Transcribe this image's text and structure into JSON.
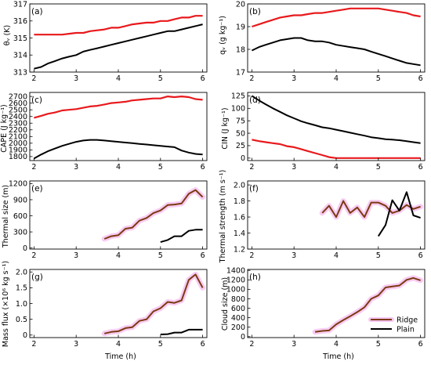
{
  "figure": {
    "xlabel": "Time (h)",
    "legend": {
      "placement": "bottom-right of panel h",
      "entries": [
        {
          "name": "Ridge",
          "color": "#7B3A10",
          "halo": "#F7C6F2"
        },
        {
          "name": "Plain",
          "color": "#000000"
        }
      ]
    }
  },
  "chart_data": [
    {
      "type": "line",
      "panel": "(a)",
      "ylabel": "θᵥ (K)",
      "xlim": [
        1.9,
        6.1
      ],
      "ylim": [
        313,
        317
      ],
      "xticks": [
        2,
        3,
        4,
        5,
        6
      ],
      "xtick_labels": [
        "2",
        "3",
        "4",
        "5",
        "6"
      ],
      "yticks": [
        313,
        314,
        315,
        316,
        317
      ],
      "ytick_labels": [
        "313",
        "314",
        "315",
        "316",
        "317"
      ],
      "series": [
        {
          "color": "#E8191C",
          "width": 2.2,
          "x": [
            2.0,
            2.17,
            2.33,
            2.5,
            2.67,
            2.83,
            3.0,
            3.17,
            3.33,
            3.5,
            3.67,
            3.83,
            4.0,
            4.17,
            4.33,
            4.5,
            4.67,
            4.83,
            5.0,
            5.17,
            5.33,
            5.5,
            5.67,
            5.83,
            6.0
          ],
          "y": [
            315.2,
            315.2,
            315.2,
            315.2,
            315.2,
            315.25,
            315.3,
            315.3,
            315.4,
            315.45,
            315.5,
            315.6,
            315.6,
            315.7,
            315.8,
            315.85,
            315.9,
            315.9,
            316.0,
            316.0,
            316.1,
            316.2,
            316.2,
            316.3,
            316.3
          ]
        },
        {
          "color": "#000000",
          "width": 2.0,
          "x": [
            2.0,
            2.17,
            2.33,
            2.5,
            2.67,
            2.83,
            3.0,
            3.17,
            3.33,
            3.5,
            3.67,
            3.83,
            4.0,
            4.17,
            4.33,
            4.5,
            4.67,
            4.83,
            5.0,
            5.17,
            5.33,
            5.5,
            5.67,
            5.83,
            6.0
          ],
          "y": [
            313.2,
            313.3,
            313.5,
            313.65,
            313.8,
            313.9,
            314.0,
            314.2,
            314.3,
            314.4,
            314.5,
            314.6,
            314.7,
            314.8,
            314.9,
            315.0,
            315.1,
            315.2,
            315.3,
            315.4,
            315.4,
            315.5,
            315.6,
            315.7,
            315.8
          ]
        }
      ]
    },
    {
      "type": "line",
      "panel": "(b)",
      "ylabel": "qᵥ (g kg⁻¹)",
      "xlim": [
        1.9,
        6.1
      ],
      "ylim": [
        17,
        20
      ],
      "xticks": [
        2,
        3,
        4,
        5,
        6
      ],
      "xtick_labels": [
        "2",
        "3",
        "4",
        "5",
        "6"
      ],
      "yticks": [
        17,
        18,
        19,
        20
      ],
      "ytick_labels": [
        "17",
        "18",
        "19",
        "20"
      ],
      "series": [
        {
          "color": "#E8191C",
          "width": 2.2,
          "x": [
            2.0,
            2.17,
            2.33,
            2.5,
            2.67,
            2.83,
            3.0,
            3.17,
            3.33,
            3.5,
            3.67,
            3.83,
            4.0,
            4.17,
            4.33,
            4.5,
            4.67,
            4.83,
            5.0,
            5.17,
            5.33,
            5.5,
            5.67,
            5.83,
            6.0
          ],
          "y": [
            19.0,
            19.1,
            19.2,
            19.3,
            19.4,
            19.45,
            19.5,
            19.5,
            19.55,
            19.6,
            19.6,
            19.65,
            19.7,
            19.75,
            19.8,
            19.8,
            19.8,
            19.8,
            19.8,
            19.75,
            19.7,
            19.65,
            19.6,
            19.5,
            19.45
          ]
        },
        {
          "color": "#000000",
          "width": 2.0,
          "x": [
            2.0,
            2.17,
            2.33,
            2.5,
            2.67,
            2.83,
            3.0,
            3.17,
            3.33,
            3.5,
            3.67,
            3.83,
            4.0,
            4.17,
            4.33,
            4.5,
            4.67,
            4.83,
            5.0,
            5.17,
            5.33,
            5.5,
            5.67,
            5.83,
            6.0
          ],
          "y": [
            17.95,
            18.1,
            18.2,
            18.3,
            18.4,
            18.45,
            18.5,
            18.5,
            18.4,
            18.35,
            18.35,
            18.3,
            18.2,
            18.15,
            18.1,
            18.05,
            18.0,
            17.9,
            17.8,
            17.7,
            17.6,
            17.5,
            17.4,
            17.35,
            17.3
          ]
        }
      ]
    },
    {
      "type": "line",
      "panel": "(c)",
      "ylabel": "CAPE (J kg⁻¹)",
      "xlim": [
        1.9,
        6.1
      ],
      "ylim": [
        1740,
        2760
      ],
      "xticks": [
        2,
        3,
        4,
        5,
        6
      ],
      "xtick_labels": [
        "2",
        "3",
        "4",
        "5",
        "6"
      ],
      "yticks": [
        1800,
        1900,
        2000,
        2100,
        2200,
        2300,
        2400,
        2500,
        2600,
        2700
      ],
      "ytick_labels": [
        "1800",
        "1900",
        "2000",
        "2100",
        "2200",
        "2300",
        "2400",
        "2500",
        "2600",
        "2700"
      ],
      "series": [
        {
          "color": "#E8191C",
          "width": 2.2,
          "x": [
            2.0,
            2.17,
            2.33,
            2.5,
            2.67,
            2.83,
            3.0,
            3.17,
            3.33,
            3.5,
            3.67,
            3.83,
            4.0,
            4.17,
            4.33,
            4.5,
            4.67,
            4.83,
            5.0,
            5.17,
            5.33,
            5.5,
            5.67,
            5.83,
            6.0
          ],
          "y": [
            2380,
            2410,
            2440,
            2460,
            2490,
            2500,
            2510,
            2530,
            2550,
            2560,
            2580,
            2600,
            2610,
            2620,
            2640,
            2650,
            2660,
            2670,
            2670,
            2700,
            2690,
            2700,
            2690,
            2660,
            2650
          ]
        },
        {
          "color": "#000000",
          "width": 2.0,
          "x": [
            2.0,
            2.17,
            2.33,
            2.5,
            2.67,
            2.83,
            3.0,
            3.17,
            3.33,
            3.5,
            3.67,
            3.83,
            4.0,
            4.17,
            4.33,
            4.5,
            4.67,
            4.83,
            5.0,
            5.17,
            5.33,
            5.5,
            5.67,
            5.83,
            6.0
          ],
          "y": [
            1770,
            1830,
            1880,
            1920,
            1960,
            1990,
            2020,
            2040,
            2050,
            2050,
            2040,
            2030,
            2020,
            2010,
            2000,
            1990,
            1980,
            1970,
            1960,
            1950,
            1940,
            1890,
            1860,
            1840,
            1830
          ]
        }
      ]
    },
    {
      "type": "line",
      "panel": "(d)",
      "ylabel": "CIN (J kg⁻¹)",
      "xlim": [
        1.9,
        6.1
      ],
      "ylim": [
        -5,
        132
      ],
      "xticks": [
        2,
        3,
        4,
        5,
        6
      ],
      "xtick_labels": [
        "2",
        "3",
        "4",
        "5",
        "6"
      ],
      "yticks": [
        0,
        25,
        50,
        75,
        100,
        125
      ],
      "ytick_labels": [
        "0",
        "25",
        "50",
        "75",
        "100",
        "125"
      ],
      "series": [
        {
          "color": "#E8191C",
          "width": 2.2,
          "x": [
            2.0,
            2.17,
            2.33,
            2.5,
            2.67,
            2.83,
            3.0,
            3.17,
            3.33,
            3.5,
            3.67,
            3.83,
            4.0,
            4.17,
            4.33,
            4.5,
            4.67,
            4.83,
            5.0,
            5.17,
            5.33,
            5.5,
            5.67,
            5.83,
            6.0
          ],
          "y": [
            37,
            34,
            32,
            30,
            28,
            24,
            22,
            18,
            14,
            10,
            6,
            2,
            0,
            0,
            0,
            0,
            0,
            0,
            0,
            0,
            0,
            0,
            0,
            0,
            0
          ]
        },
        {
          "color": "#000000",
          "width": 2.0,
          "x": [
            2.0,
            2.17,
            2.33,
            2.5,
            2.67,
            2.83,
            3.0,
            3.17,
            3.33,
            3.5,
            3.67,
            3.83,
            4.0,
            4.17,
            4.33,
            4.5,
            4.67,
            4.83,
            5.0,
            5.17,
            5.33,
            5.5,
            5.67,
            5.83,
            6.0
          ],
          "y": [
            125,
            116,
            108,
            100,
            93,
            86,
            80,
            74,
            70,
            66,
            62,
            60,
            57,
            54,
            51,
            48,
            45,
            42,
            40,
            38,
            37,
            36,
            34,
            32,
            30
          ]
        }
      ]
    },
    {
      "type": "line",
      "panel": "(e)",
      "ylabel": "Thermal size (m)",
      "xlim": [
        1.9,
        6.1
      ],
      "ylim": [
        -20,
        1250
      ],
      "xticks": [
        2,
        3,
        4,
        5,
        6
      ],
      "xtick_labels": [
        "2",
        "3",
        "4",
        "5",
        "6"
      ],
      "yticks": [
        0,
        300,
        600,
        900,
        1200
      ],
      "ytick_labels": [
        "0",
        "300",
        "600",
        "900",
        "1200"
      ],
      "series": [
        {
          "color": "#7B3A10",
          "halo": "#F7C6F2",
          "width": 2.0,
          "x": [
            3.67,
            3.83,
            4.0,
            4.17,
            4.33,
            4.5,
            4.67,
            4.83,
            5.0,
            5.17,
            5.33,
            5.5,
            5.67,
            5.83,
            6.0
          ],
          "y": [
            170,
            220,
            240,
            360,
            380,
            510,
            560,
            650,
            700,
            800,
            810,
            830,
            1010,
            1080,
            950
          ]
        },
        {
          "color": "#000000",
          "width": 2.0,
          "x": [
            5.0,
            5.17,
            5.33,
            5.5,
            5.67,
            5.83,
            6.0
          ],
          "y": [
            110,
            150,
            220,
            220,
            320,
            340,
            340
          ]
        }
      ]
    },
    {
      "type": "line",
      "panel": "(f)",
      "ylabel": "Thermal strength (m s⁻¹)",
      "xlim": [
        1.9,
        6.1
      ],
      "ylim": [
        1.2,
        2.05
      ],
      "xticks": [
        2,
        3,
        4,
        5,
        6
      ],
      "xtick_labels": [
        "2",
        "3",
        "4",
        "5",
        "6"
      ],
      "yticks": [
        1.2,
        1.4,
        1.6,
        1.8,
        2.0
      ],
      "ytick_labels": [
        "1.2",
        "1.4",
        "1.6",
        "1.8",
        "2.0"
      ],
      "series": [
        {
          "color": "#7B3A10",
          "halo": "#F7C6F2",
          "width": 2.0,
          "x": [
            3.67,
            3.83,
            4.0,
            4.17,
            4.33,
            4.5,
            4.67,
            4.83,
            5.0,
            5.17,
            5.33,
            5.5,
            5.67,
            5.83,
            6.0
          ],
          "y": [
            1.65,
            1.74,
            1.6,
            1.8,
            1.65,
            1.72,
            1.6,
            1.78,
            1.78,
            1.74,
            1.65,
            1.68,
            1.75,
            1.7,
            1.73
          ]
        },
        {
          "color": "#000000",
          "width": 2.0,
          "x": [
            5.0,
            5.17,
            5.33,
            5.5,
            5.67,
            5.83,
            6.0
          ],
          "y": [
            1.36,
            1.5,
            1.81,
            1.68,
            1.91,
            1.62,
            1.59
          ]
        }
      ]
    },
    {
      "type": "line",
      "panel": "(g)",
      "ylabel": "Mass flux (×10⁶ kg s⁻¹)",
      "xlim": [
        1.9,
        6.1
      ],
      "ylim": [
        -0.08,
        2.08
      ],
      "xticks": [
        2,
        3,
        4,
        5,
        6
      ],
      "xtick_labels": [
        "2",
        "3",
        "4",
        "5",
        "6"
      ],
      "yticks": [
        0,
        0.5,
        1.0,
        1.5,
        2.0
      ],
      "ytick_labels": [
        "0",
        "0.5",
        "1.0",
        "1.5",
        "2.0"
      ],
      "series": [
        {
          "color": "#7B3A10",
          "halo": "#F7C6F2",
          "width": 2.0,
          "x": [
            3.67,
            3.83,
            4.0,
            4.17,
            4.33,
            4.5,
            4.67,
            4.83,
            5.0,
            5.17,
            5.33,
            5.5,
            5.67,
            5.83,
            6.0
          ],
          "y": [
            0.05,
            0.1,
            0.12,
            0.22,
            0.25,
            0.45,
            0.5,
            0.75,
            0.85,
            1.05,
            1.02,
            1.1,
            1.75,
            1.92,
            1.5
          ]
        },
        {
          "color": "#000000",
          "width": 2.0,
          "x": [
            5.0,
            5.17,
            5.33,
            5.5,
            5.67,
            5.83,
            6.0
          ],
          "y": [
            0.02,
            0.03,
            0.08,
            0.08,
            0.17,
            0.17,
            0.17
          ]
        }
      ]
    },
    {
      "type": "line",
      "panel": "(h)",
      "ylabel": "Cloud size (m)",
      "xlim": [
        1.9,
        6.1
      ],
      "ylim": [
        -20,
        1420
      ],
      "xticks": [
        2,
        3,
        4,
        5,
        6
      ],
      "xtick_labels": [
        "2",
        "3",
        "4",
        "5",
        "6"
      ],
      "yticks": [
        0,
        200,
        400,
        600,
        800,
        1000,
        1200,
        1400
      ],
      "ytick_labels": [
        "0",
        "200",
        "400",
        "600",
        "800",
        "1000",
        "1200",
        "1400"
      ],
      "series": [
        {
          "color": "#7B3A10",
          "halo": "#F7C6F2",
          "width": 2.0,
          "x": [
            3.5,
            3.67,
            3.83,
            4.0,
            4.17,
            4.33,
            4.5,
            4.67,
            4.83,
            5.0,
            5.17,
            5.33,
            5.5,
            5.67,
            5.83,
            6.0
          ],
          "y": [
            100,
            120,
            130,
            260,
            350,
            430,
            520,
            620,
            800,
            870,
            1040,
            1060,
            1080,
            1200,
            1240,
            1190
          ]
        }
      ]
    }
  ]
}
